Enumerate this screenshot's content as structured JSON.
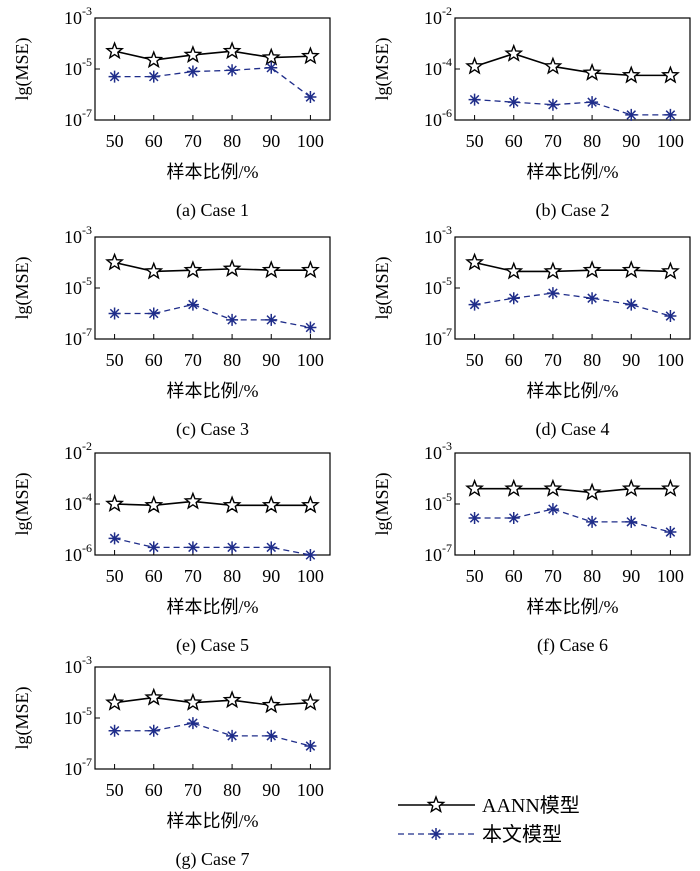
{
  "chart_data": [
    {
      "type": "line",
      "caption": "(a) Case 1",
      "xlabel": "样本比例/%",
      "ylabel": "lg(MSE)",
      "x": [
        50,
        60,
        70,
        80,
        90,
        100
      ],
      "ylim_exp": [
        -7,
        -3
      ],
      "ytick_labels": [
        "10^-7",
        "10^-5",
        "10^-3"
      ],
      "series": [
        {
          "name": "AANN模型",
          "values_exp": [
            -4.3,
            -4.65,
            -4.45,
            -4.3,
            -4.55,
            -4.5
          ]
        },
        {
          "name": "本文模型",
          "values_exp": [
            -5.3,
            -5.3,
            -5.1,
            -5.05,
            -4.95,
            -6.1
          ]
        }
      ]
    },
    {
      "type": "line",
      "caption": "(b) Case 2",
      "xlabel": "样本比例/%",
      "ylabel": "lg(MSE)",
      "x": [
        50,
        60,
        70,
        80,
        90,
        100
      ],
      "ylim_exp": [
        -6,
        -2
      ],
      "ytick_labels": [
        "10^-6",
        "10^-4",
        "10^-2"
      ],
      "series": [
        {
          "name": "AANN模型",
          "values_exp": [
            -3.9,
            -3.4,
            -3.9,
            -4.15,
            -4.25,
            -4.25
          ]
        },
        {
          "name": "本文模型",
          "values_exp": [
            -5.2,
            -5.3,
            -5.4,
            -5.3,
            -5.8,
            -5.8
          ]
        }
      ]
    },
    {
      "type": "line",
      "caption": "(c) Case 3",
      "xlabel": "样本比例/%",
      "ylabel": "lg(MSE)",
      "x": [
        50,
        60,
        70,
        80,
        90,
        100
      ],
      "ylim_exp": [
        -7,
        -3
      ],
      "ytick_labels": [
        "10^-7",
        "10^-5",
        "10^-3"
      ],
      "series": [
        {
          "name": "AANN模型",
          "values_exp": [
            -4,
            -4.35,
            -4.3,
            -4.25,
            -4.3,
            -4.3
          ]
        },
        {
          "name": "本文模型",
          "values_exp": [
            -6,
            -6,
            -5.65,
            -6.25,
            -6.25,
            -6.55
          ]
        }
      ]
    },
    {
      "type": "line",
      "caption": "(d) Case 4",
      "xlabel": "样本比例/%",
      "ylabel": "lg(MSE)",
      "x": [
        50,
        60,
        70,
        80,
        90,
        100
      ],
      "ylim_exp": [
        -7,
        -3
      ],
      "ytick_labels": [
        "10^-7",
        "10^-5",
        "10^-3"
      ],
      "series": [
        {
          "name": "AANN模型",
          "values_exp": [
            -4,
            -4.35,
            -4.35,
            -4.3,
            -4.3,
            -4.35
          ]
        },
        {
          "name": "本文模型",
          "values_exp": [
            -5.65,
            -5.4,
            -5.2,
            -5.4,
            -5.65,
            -6.1
          ]
        }
      ]
    },
    {
      "type": "line",
      "caption": "(e) Case 5",
      "xlabel": "样本比例/%",
      "ylabel": "lg(MSE)",
      "x": [
        50,
        60,
        70,
        80,
        90,
        100
      ],
      "ylim_exp": [
        -6,
        -2
      ],
      "ytick_labels": [
        "10^-6",
        "10^-4",
        "10^-2"
      ],
      "series": [
        {
          "name": "AANN模型",
          "values_exp": [
            -4,
            -4.05,
            -3.9,
            -4.05,
            -4.05,
            -4.05
          ]
        },
        {
          "name": "本文模型",
          "values_exp": [
            -5.35,
            -5.7,
            -5.7,
            -5.7,
            -5.7,
            -6
          ]
        }
      ]
    },
    {
      "type": "line",
      "caption": "(f) Case 6",
      "xlabel": "样本比例/%",
      "ylabel": "lg(MSE)",
      "x": [
        50,
        60,
        70,
        80,
        90,
        100
      ],
      "ylim_exp": [
        -7,
        -3
      ],
      "ytick_labels": [
        "10^-7",
        "10^-5",
        "10^-3"
      ],
      "series": [
        {
          "name": "AANN模型",
          "values_exp": [
            -4.4,
            -4.4,
            -4.4,
            -4.55,
            -4.4,
            -4.4
          ]
        },
        {
          "name": "本文模型",
          "values_exp": [
            -5.55,
            -5.55,
            -5.2,
            -5.7,
            -5.7,
            -6.1
          ]
        }
      ]
    },
    {
      "type": "line",
      "caption": "(g) Case 7",
      "xlabel": "样本比例/%",
      "ylabel": "lg(MSE)",
      "x": [
        50,
        60,
        70,
        80,
        90,
        100
      ],
      "ylim_exp": [
        -7,
        -3
      ],
      "ytick_labels": [
        "10^-7",
        "10^-5",
        "10^-3"
      ],
      "series": [
        {
          "name": "AANN模型",
          "values_exp": [
            -4.4,
            -4.2,
            -4.4,
            -4.3,
            -4.5,
            -4.4
          ]
        },
        {
          "name": "本文模型",
          "values_exp": [
            -5.5,
            -5.5,
            -5.2,
            -5.7,
            -5.7,
            -6.1
          ]
        }
      ]
    }
  ],
  "legend": {
    "items": [
      {
        "label": "AANN模型",
        "color": "#000000",
        "marker": "star-icon",
        "dash": "solid"
      },
      {
        "label": "本文模型",
        "color": "#1f2d8a",
        "marker": "asterisk-icon",
        "dash": "dashed"
      }
    ]
  },
  "colors": {
    "aann": "#000000",
    "ours": "#1f2d8a",
    "axis": "#000000"
  }
}
